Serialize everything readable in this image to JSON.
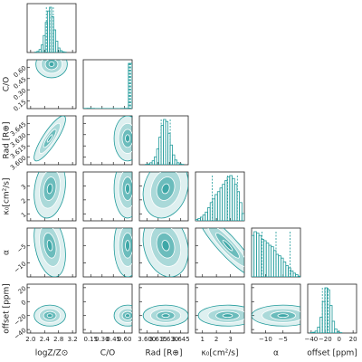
{
  "chart_data": {
    "type": "corner",
    "color": "#1f9a9a",
    "params": [
      {
        "label": "logZ/Z⊙",
        "lim": [
          1.9,
          3.3
        ],
        "ticks": [
          {
            "value": 2.0,
            "label": "2.0"
          },
          2.4,
          2.8,
          3.2
        ],
        "bins": [
          2.0,
          2.06,
          2.12,
          2.18,
          2.24,
          2.3,
          2.36,
          2.42,
          2.48,
          2.54,
          2.6,
          2.66,
          2.72,
          2.78,
          2.84,
          2.9,
          2.96,
          3.02,
          3.08,
          3.14,
          3.2
        ],
        "counts": [
          0,
          0,
          1,
          3,
          8,
          20,
          45,
          80,
          110,
          120,
          95,
          60,
          30,
          12,
          5,
          2,
          1,
          0,
          0,
          0
        ],
        "quantiles": [
          2.45,
          2.55,
          2.65
        ]
      },
      {
        "label": "C/O",
        "lim": [
          0.05,
          0.7
        ],
        "ticks": [
          0.15,
          {
            "value": 0.3,
            "label": "0.30"
          },
          0.45,
          {
            "value": 0.6,
            "label": "0.60"
          }
        ],
        "bins": [
          0.05,
          0.1,
          0.15,
          0.2,
          0.25,
          0.3,
          0.35,
          0.4,
          0.45,
          0.5,
          0.55,
          0.6,
          0.65,
          0.7
        ],
        "counts": [
          2,
          3,
          2,
          1,
          1,
          1,
          1,
          1,
          1,
          1,
          2,
          3,
          400
        ],
        "quantiles": [
          0.66,
          0.67,
          0.68
        ]
      },
      {
        "label": "Rad [R⊕]",
        "lim": [
          3.59,
          3.655
        ],
        "ticks": [
          {
            "value": 3.6,
            "label": "3.600"
          },
          3.615,
          {
            "value": 3.63,
            "label": "3.630"
          },
          3.645
        ],
        "bins": [
          3.595,
          3.598,
          3.601,
          3.604,
          3.607,
          3.61,
          3.613,
          3.616,
          3.619,
          3.622,
          3.625,
          3.628,
          3.631,
          3.634,
          3.637,
          3.64,
          3.643,
          3.646,
          3.649,
          3.652,
          3.655
        ],
        "counts": [
          0,
          1,
          2,
          5,
          10,
          20,
          40,
          70,
          100,
          115,
          110,
          80,
          50,
          25,
          12,
          5,
          2,
          1,
          0,
          0
        ],
        "quantiles": [
          3.619,
          3.625,
          3.631
        ]
      },
      {
        "label": "κ₀[cm²/s]",
        "lim": [
          0.5,
          4.0
        ],
        "ticks": [
          1,
          2,
          3
        ],
        "bins": [
          0.5,
          0.675,
          0.85,
          1.025,
          1.2,
          1.375,
          1.55,
          1.725,
          1.9,
          2.075,
          2.25,
          2.425,
          2.6,
          2.775,
          2.95,
          3.125,
          3.3,
          3.475,
          3.65,
          3.825,
          4.0
        ],
        "counts": [
          2,
          3,
          5,
          8,
          12,
          18,
          25,
          30,
          36,
          40,
          45,
          50,
          55,
          60,
          62,
          58,
          50,
          40,
          25,
          10
        ],
        "quantiles": [
          1.7,
          2.8,
          3.5
        ]
      },
      {
        "label": "α",
        "lim": [
          -14,
          0
        ],
        "ticks": [
          {
            "value": -10,
            "label": "−10"
          },
          {
            "value": -5,
            "label": "−5"
          }
        ],
        "bins": [
          -14,
          -13.3,
          -12.6,
          -11.9,
          -11.2,
          -10.5,
          -9.8,
          -9.1,
          -8.4,
          -7.7,
          -7,
          -6.3,
          -5.6,
          -4.9,
          -4.2,
          -3.5,
          -2.8,
          -2.1,
          -1.4,
          -0.7,
          0
        ],
        "counts": [
          55,
          60,
          58,
          55,
          50,
          48,
          45,
          42,
          40,
          35,
          30,
          28,
          25,
          20,
          15,
          12,
          8,
          5,
          3,
          1
        ],
        "quantiles": [
          -11,
          -7,
          -3
        ]
      },
      {
        "label": "offset [ppm]",
        "lim": [
          -45,
          25
        ],
        "ticks": [
          {
            "value": -40,
            "label": "−40"
          },
          {
            "value": -20,
            "label": "−20"
          },
          0,
          20
        ],
        "bins": [
          -45,
          -41.5,
          -38,
          -34.5,
          -31,
          -27.5,
          -24,
          -20.5,
          -17,
          -13.5,
          -10,
          -6.5,
          -3,
          0.5,
          4,
          7.5,
          11,
          14.5,
          18,
          21.5,
          25
        ],
        "counts": [
          0,
          1,
          2,
          5,
          15,
          40,
          80,
          115,
          110,
          70,
          30,
          10,
          3,
          1,
          0,
          0,
          0,
          0,
          0,
          0
        ],
        "quantiles": [
          -24,
          -20,
          -16
        ]
      }
    ],
    "pairs": [
      {
        "x": 0,
        "y": 1,
        "center": [
          2.6,
          0.64
        ],
        "spread": [
          0.15,
          0.06
        ],
        "corr": 0
      },
      {
        "x": 0,
        "y": 2,
        "center": [
          2.55,
          3.625
        ],
        "spread": [
          0.15,
          0.01
        ],
        "corr": 0.85
      },
      {
        "x": 0,
        "y": 3,
        "center": [
          2.55,
          2.8
        ],
        "spread": [
          0.15,
          0.7
        ],
        "corr": 0.2
      },
      {
        "x": 0,
        "y": 4,
        "center": [
          2.55,
          -5
        ],
        "spread": [
          0.15,
          3
        ],
        "corr": -0.3
      },
      {
        "x": 0,
        "y": 5,
        "center": [
          2.55,
          -20
        ],
        "spread": [
          0.15,
          5
        ],
        "corr": 0
      },
      {
        "x": 1,
        "y": 2,
        "center": [
          0.64,
          3.625
        ],
        "spread": [
          0.06,
          0.01
        ],
        "corr": 0
      },
      {
        "x": 1,
        "y": 3,
        "center": [
          0.64,
          2.8
        ],
        "spread": [
          0.06,
          0.7
        ],
        "corr": 0
      },
      {
        "x": 1,
        "y": 4,
        "center": [
          0.64,
          -5
        ],
        "spread": [
          0.06,
          3
        ],
        "corr": 0
      },
      {
        "x": 1,
        "y": 5,
        "center": [
          0.64,
          -20
        ],
        "spread": [
          0.06,
          5
        ],
        "corr": 0
      },
      {
        "x": 2,
        "y": 3,
        "center": [
          3.625,
          2.8
        ],
        "spread": [
          0.01,
          0.7
        ],
        "corr": 0.2
      },
      {
        "x": 2,
        "y": 4,
        "center": [
          3.625,
          -5
        ],
        "spread": [
          0.01,
          3
        ],
        "corr": -0.2
      },
      {
        "x": 2,
        "y": 5,
        "center": [
          3.625,
          -20
        ],
        "spread": [
          0.01,
          5
        ],
        "corr": 0
      },
      {
        "x": 3,
        "y": 4,
        "center": [
          2.8,
          -5
        ],
        "spread": [
          0.7,
          3
        ],
        "corr": -0.9
      },
      {
        "x": 3,
        "y": 5,
        "center": [
          2.8,
          -20
        ],
        "spread": [
          0.7,
          5
        ],
        "corr": 0
      },
      {
        "x": 4,
        "y": 5,
        "center": [
          -5,
          -20
        ],
        "spread": [
          3,
          5
        ],
        "corr": 0
      }
    ]
  }
}
